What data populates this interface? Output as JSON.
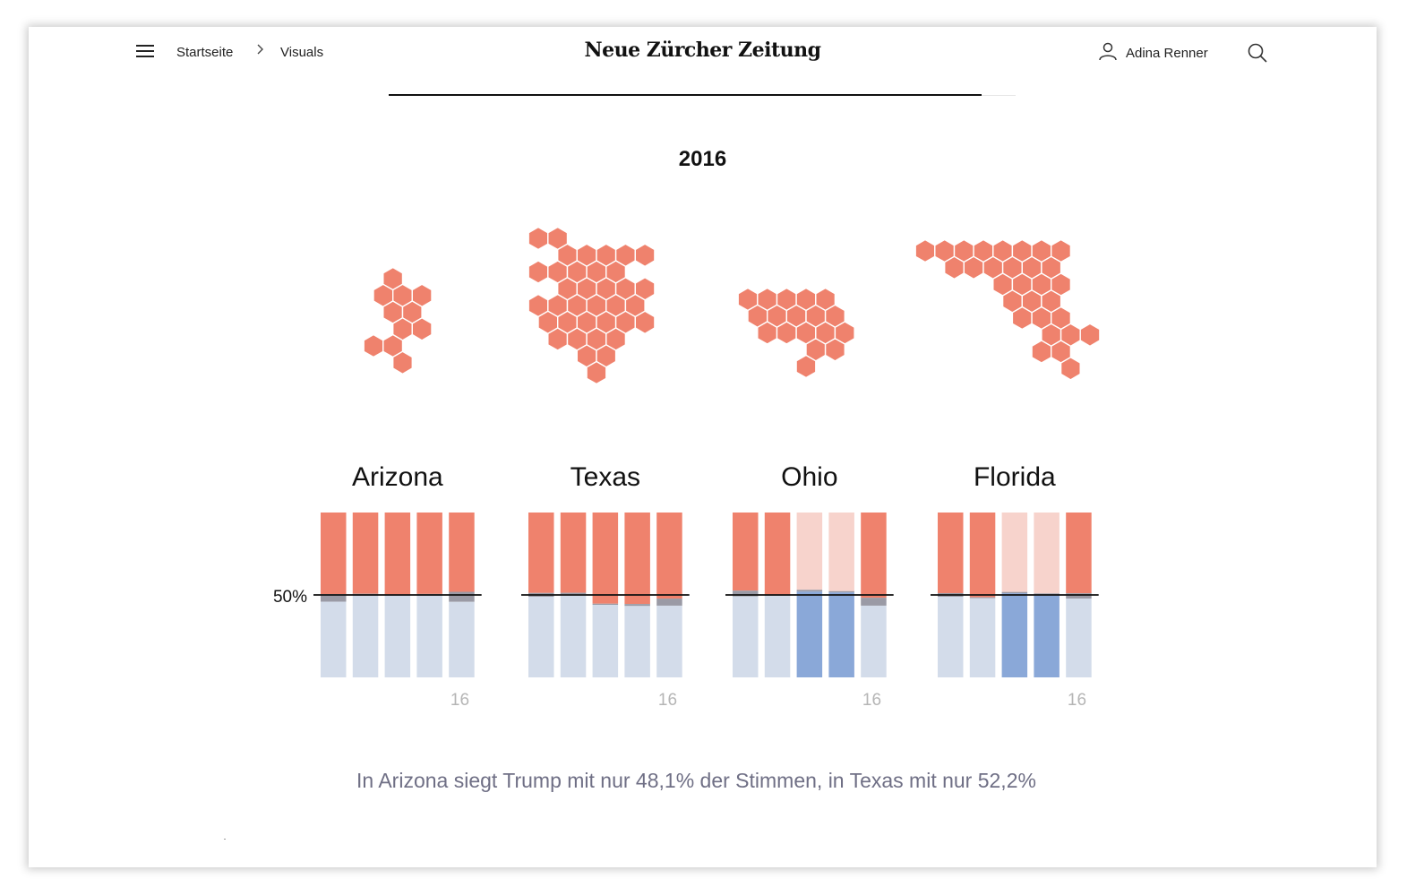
{
  "header": {
    "menu_icon": "hamburger-menu-icon",
    "breadcrumb": [
      "Startseite",
      "Visuals"
    ],
    "breadcrumb_separator": "chevron-right-icon",
    "logo": "Neue Zürcher Zeitung",
    "user_name": "Adina Renner",
    "user_icon": "user-icon",
    "search_icon": "search-icon"
  },
  "reading_progress": 0.945,
  "year_title": "2016",
  "caption": "In Arizona siegt Trump mit nur 48,1% der Stimmen, in Texas mit nur 52,2%",
  "colors": {
    "rep": "#ef826d",
    "rep_light": "#f7d3cc",
    "dem": "#8aa8d8",
    "dem_light": "#d3dcea",
    "other": "#9a9aa5"
  },
  "chart_data": {
    "type": "bar",
    "reference_label": "50%",
    "reference_value": 50,
    "last_tick_label": "16",
    "states": [
      {
        "name": "Arizona",
        "winner": [
          "rep",
          "rep",
          "rep",
          "rep",
          "rep"
        ],
        "rep": [
          49.5,
          49.3,
          49.7,
          49.4,
          48.1
        ],
        "other": [
          4.6,
          1.2,
          0.8,
          1.1,
          6.1
        ]
      },
      {
        "name": "Texas",
        "winner": [
          "rep",
          "rep",
          "rep",
          "rep",
          "rep"
        ],
        "rep": [
          48.8,
          48.7,
          55.3,
          55.5,
          52.2
        ],
        "other": [
          2.3,
          0.9,
          0.7,
          1.2,
          4.3
        ]
      },
      {
        "name": "Ohio",
        "winner": [
          "rep",
          "rep",
          "dem",
          "dem",
          "rep"
        ],
        "rep": [
          47.4,
          49.9,
          46.9,
          47.7,
          51.7
        ],
        "other": [
          3.5,
          0.7,
          1.1,
          0.8,
          4.8
        ]
      },
      {
        "name": "Florida",
        "winner": [
          "rep",
          "rep",
          "dem",
          "dem",
          "rep"
        ],
        "rep": [
          48.9,
          51.4,
          48.2,
          49.1,
          49.0
        ],
        "other": [
          2.2,
          0.5,
          0.8,
          0.6,
          3.2
        ]
      }
    ],
    "hex_maps": [
      {
        "name": "Arizona",
        "color": "#ef826d",
        "hexes": [
          [
            1,
            0
          ],
          [
            0,
            1
          ],
          [
            1,
            1
          ],
          [
            2,
            1
          ],
          [
            1,
            2
          ],
          [
            2,
            2
          ],
          [
            1,
            3
          ],
          [
            2,
            3
          ],
          [
            0,
            4
          ],
          [
            1,
            4
          ],
          [
            1,
            5
          ]
        ]
      },
      {
        "name": "Texas",
        "color": "#ef826d",
        "hexes": [
          [
            0,
            0
          ],
          [
            1,
            0
          ],
          [
            1,
            1
          ],
          [
            2,
            1
          ],
          [
            3,
            1
          ],
          [
            4,
            1
          ],
          [
            5,
            1
          ],
          [
            0,
            2
          ],
          [
            1,
            2
          ],
          [
            2,
            2
          ],
          [
            3,
            2
          ],
          [
            4,
            2
          ],
          [
            1,
            3
          ],
          [
            2,
            3
          ],
          [
            3,
            3
          ],
          [
            4,
            3
          ],
          [
            5,
            3
          ],
          [
            0,
            4
          ],
          [
            1,
            4
          ],
          [
            2,
            4
          ],
          [
            3,
            4
          ],
          [
            4,
            4
          ],
          [
            5,
            4
          ],
          [
            0,
            5
          ],
          [
            1,
            5
          ],
          [
            2,
            5
          ],
          [
            3,
            5
          ],
          [
            4,
            5
          ],
          [
            5,
            5
          ],
          [
            1,
            6
          ],
          [
            2,
            6
          ],
          [
            3,
            6
          ],
          [
            4,
            6
          ],
          [
            2,
            7
          ],
          [
            3,
            7
          ],
          [
            3,
            8
          ]
        ]
      },
      {
        "name": "Ohio",
        "color": "#ef826d",
        "hexes": [
          [
            0,
            0
          ],
          [
            1,
            0
          ],
          [
            2,
            0
          ],
          [
            3,
            0
          ],
          [
            4,
            0
          ],
          [
            0,
            1
          ],
          [
            1,
            1
          ],
          [
            2,
            1
          ],
          [
            3,
            1
          ],
          [
            4,
            1
          ],
          [
            1,
            2
          ],
          [
            2,
            2
          ],
          [
            3,
            2
          ],
          [
            4,
            2
          ],
          [
            5,
            2
          ],
          [
            3,
            3
          ],
          [
            4,
            3
          ],
          [
            3,
            4
          ]
        ]
      },
      {
        "name": "Florida",
        "color": "#ef826d",
        "hexes": [
          [
            0,
            0
          ],
          [
            1,
            0
          ],
          [
            2,
            0
          ],
          [
            3,
            0
          ],
          [
            4,
            0
          ],
          [
            5,
            0
          ],
          [
            6,
            0
          ],
          [
            7,
            0
          ],
          [
            1,
            1
          ],
          [
            2,
            1
          ],
          [
            3,
            1
          ],
          [
            4,
            1
          ],
          [
            5,
            1
          ],
          [
            6,
            1
          ],
          [
            4,
            2
          ],
          [
            5,
            2
          ],
          [
            6,
            2
          ],
          [
            7,
            2
          ],
          [
            4,
            3
          ],
          [
            5,
            3
          ],
          [
            6,
            3
          ],
          [
            5,
            4
          ],
          [
            6,
            4
          ],
          [
            7,
            4
          ],
          [
            6,
            5
          ],
          [
            7,
            5
          ],
          [
            8,
            5
          ],
          [
            6,
            6
          ],
          [
            7,
            6
          ],
          [
            7,
            7
          ]
        ]
      }
    ]
  }
}
